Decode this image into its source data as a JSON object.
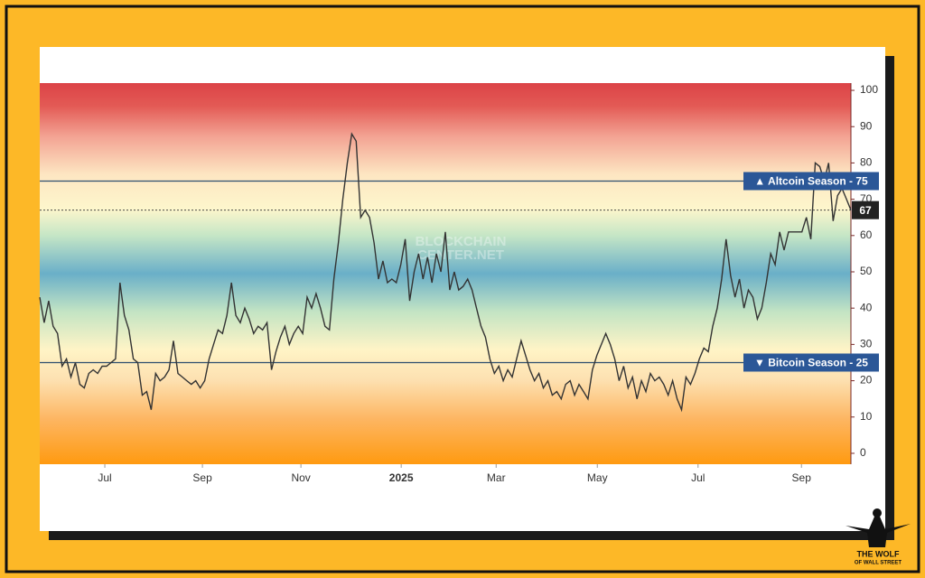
{
  "chart_data": {
    "type": "line",
    "color": "#333333",
    "ylim": [
      -3,
      102
    ],
    "yticks": [
      0,
      10,
      20,
      30,
      40,
      50,
      60,
      70,
      80,
      90,
      100
    ],
    "xlim": [
      0,
      182
    ],
    "xticks": [
      {
        "value": 14.6,
        "label": "Jul"
      },
      {
        "value": 36.5,
        "label": "Sep"
      },
      {
        "value": 58.6,
        "label": "Nov"
      },
      {
        "value": 81.1,
        "label": "2025"
      },
      {
        "value": 102.4,
        "label": "Mar"
      },
      {
        "value": 125.1,
        "label": "May"
      },
      {
        "value": 147.7,
        "label": "Jul"
      },
      {
        "value": 170.9,
        "label": "Sep"
      }
    ],
    "values": [
      43,
      36,
      42,
      35,
      33,
      24,
      26,
      21,
      25,
      19,
      18,
      22,
      23,
      22,
      24,
      24,
      25,
      26,
      47,
      38,
      34,
      26,
      25,
      16,
      17,
      12,
      22,
      20,
      21,
      23,
      31,
      22,
      21,
      20,
      19,
      20,
      18,
      20,
      26,
      30,
      34,
      33,
      38,
      47,
      38,
      36,
      40,
      37,
      33,
      35,
      34,
      36,
      23,
      28,
      32,
      35,
      30,
      33,
      35,
      33,
      43,
      40,
      44,
      40,
      35,
      34,
      48,
      58,
      70,
      80,
      88,
      86,
      65,
      67,
      65,
      58,
      48,
      53,
      47,
      48,
      47,
      52,
      59,
      42,
      50,
      55,
      48,
      54,
      47,
      55,
      50,
      61,
      45,
      50,
      45,
      46,
      48,
      45,
      40,
      35,
      32,
      26,
      22,
      24,
      20,
      23,
      21,
      26,
      31,
      27,
      23,
      20,
      22,
      18,
      20,
      16,
      17,
      15,
      19,
      20,
      16,
      19,
      17,
      15,
      23,
      27,
      30,
      33,
      30,
      26,
      20,
      24,
      18,
      21,
      15,
      20,
      17,
      22,
      20,
      21,
      19,
      16,
      20,
      15,
      12,
      21,
      19,
      22,
      26,
      29,
      28,
      35,
      40,
      48,
      59,
      49,
      43,
      48,
      40,
      45,
      43,
      37,
      40,
      47,
      55,
      52,
      61,
      56,
      61,
      61,
      61,
      61,
      65,
      59,
      80,
      79,
      75,
      80,
      64,
      71,
      73,
      70,
      67
    ],
    "reference_lines": [
      {
        "value": 75,
        "label": "▲ Altcoin Season - 75"
      },
      {
        "value": 25,
        "label": "▼ Bitcoin Season - 25"
      }
    ],
    "watermark": [
      "BLOCKCHAIN",
      "CENTER.NET"
    ],
    "logo": [
      "THE WOLF",
      "OF WALL STREET"
    ]
  }
}
